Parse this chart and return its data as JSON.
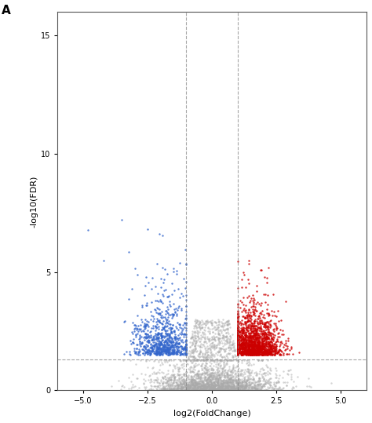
{
  "title": "A",
  "xlabel": "log2(FoldChange)",
  "ylabel": "-log10(FDR)",
  "xlim": [
    -6,
    6
  ],
  "ylim": [
    0,
    16
  ],
  "xticks": [
    -5.0,
    -2.5,
    0.0,
    2.5,
    5.0
  ],
  "yticks": [
    0,
    5,
    10,
    15
  ],
  "fc_cutoff": 1.0,
  "fdr_cutoff": 1.3,
  "n_red": 1800,
  "n_blue": 900,
  "n_gray": 2500,
  "red_color": "#CC0000",
  "blue_color": "#3366CC",
  "gray_color": "#AAAAAA",
  "dot_size": 3,
  "background_color": "#FFFFFF",
  "dpi": 100,
  "fig_width": 4.74,
  "fig_height": 5.39
}
